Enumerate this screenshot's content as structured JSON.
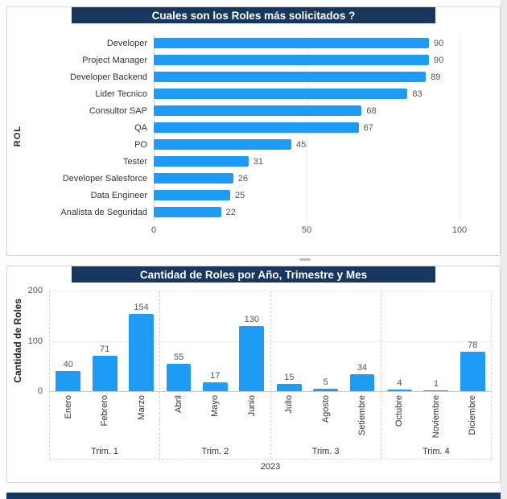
{
  "colors": {
    "bar": "#1E9BF5",
    "title_bg": "#17375E",
    "title_text": "#FFFFFF"
  },
  "chart_data": [
    {
      "type": "bar",
      "orientation": "horizontal",
      "title": "Cuales son los Roles más solicitados ?",
      "ylabel": "ROL",
      "xlabel": "",
      "categories": [
        "Developer",
        "Project Manager",
        "Developer Backend",
        "Lider Tecnico",
        "Consultor SAP",
        "QA",
        "PO",
        "Tester",
        "Developer Salesforce",
        "Data Engineer",
        "Analista de Seguridad"
      ],
      "values": [
        90,
        90,
        89,
        83,
        68,
        67,
        45,
        31,
        26,
        25,
        22
      ],
      "xlim": [
        0,
        100
      ],
      "xticks": [
        0,
        50,
        100
      ],
      "data_labels": true,
      "grid": "vertical-light",
      "legend": "none"
    },
    {
      "type": "bar",
      "orientation": "vertical",
      "title": "Cantidad de Roles por Año, Trimestre y Mes",
      "ylabel": "Cantidad de Roles",
      "xlabel": "",
      "categories": [
        "Enero",
        "Febrero",
        "Marzo",
        "Abril",
        "Mayo",
        "Junio",
        "Julio",
        "Agosto",
        "Setiembre",
        "Octubre",
        "Noviembre",
        "Diciembre"
      ],
      "values": [
        40,
        71,
        154,
        55,
        17,
        130,
        15,
        5,
        34,
        4,
        1,
        78
      ],
      "ylim": [
        0,
        200
      ],
      "yticks": [
        0,
        100,
        200
      ],
      "groups": [
        {
          "label": "Trim. 1",
          "indices": [
            0,
            1,
            2
          ]
        },
        {
          "label": "Trim. 2",
          "indices": [
            3,
            4,
            5
          ]
        },
        {
          "label": "Trim. 3",
          "indices": [
            6,
            7,
            8
          ]
        },
        {
          "label": "Trim. 4",
          "indices": [
            9,
            10,
            11
          ]
        }
      ],
      "year_label": "2023",
      "data_labels": true,
      "grid": "horizontal-light",
      "legend": "none"
    }
  ]
}
